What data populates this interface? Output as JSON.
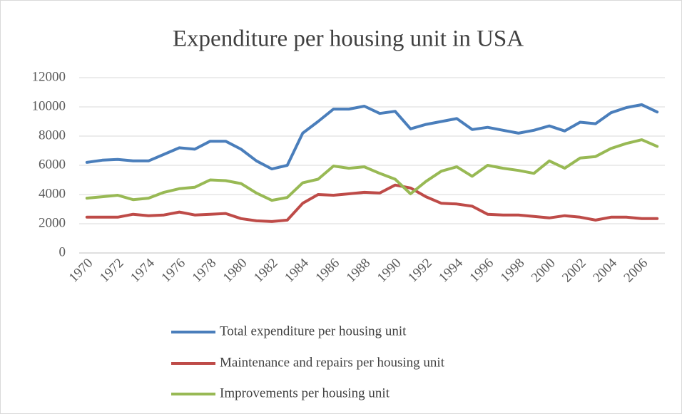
{
  "chart_data": {
    "type": "line",
    "title": "Expenditure per housing unit in USA",
    "categories": [
      1970,
      null,
      1972,
      null,
      1974,
      null,
      1976,
      null,
      1978,
      null,
      1980,
      null,
      1982,
      null,
      1984,
      null,
      1986,
      null,
      1988,
      null,
      1990,
      null,
      1992,
      null,
      1994,
      null,
      1996,
      null,
      1998,
      null,
      2000,
      null,
      2002,
      null,
      2004,
      null,
      2006,
      null
    ],
    "series": [
      {
        "name": "Total expenditure per housing unit",
        "color": "#4a7ebb",
        "values": [
          6200,
          6350,
          6400,
          6300,
          6300,
          6750,
          7200,
          7100,
          7650,
          7650,
          7100,
          6300,
          5750,
          6000,
          8200,
          9000,
          9850,
          9850,
          10050,
          9550,
          9700,
          8500,
          8800,
          9000,
          9200,
          8450,
          8600,
          8400,
          8200,
          8400,
          8700,
          8350,
          8950,
          8850,
          9600,
          9950,
          10150,
          9650
        ]
      },
      {
        "name": "Maintenance and repairs per housing unit",
        "color": "#be4b48",
        "values": [
          2450,
          2450,
          2450,
          2650,
          2550,
          2600,
          2800,
          2600,
          2650,
          2700,
          2350,
          2200,
          2150,
          2250,
          3400,
          4000,
          3950,
          4050,
          4150,
          4100,
          4650,
          4450,
          3850,
          3400,
          3350,
          3200,
          2650,
          2600,
          2600,
          2500,
          2400,
          2550,
          2450,
          2250,
          2450,
          2450,
          2350,
          2350
        ]
      },
      {
        "name": "Improvements per housing unit",
        "color": "#98b954",
        "values": [
          3750,
          3850,
          3950,
          3650,
          3750,
          4150,
          4400,
          4500,
          5000,
          4950,
          4750,
          4100,
          3600,
          3800,
          4800,
          5050,
          5950,
          5800,
          5900,
          5450,
          5050,
          4050,
          4900,
          5600,
          5900,
          5250,
          6000,
          5800,
          5650,
          5450,
          6300,
          5800,
          6500,
          6600,
          7150,
          7500,
          7750,
          7300
        ]
      }
    ],
    "ylim": [
      0,
      12000
    ],
    "yticks": [
      0,
      2000,
      4000,
      6000,
      8000,
      10000,
      12000
    ],
    "grid": true
  }
}
